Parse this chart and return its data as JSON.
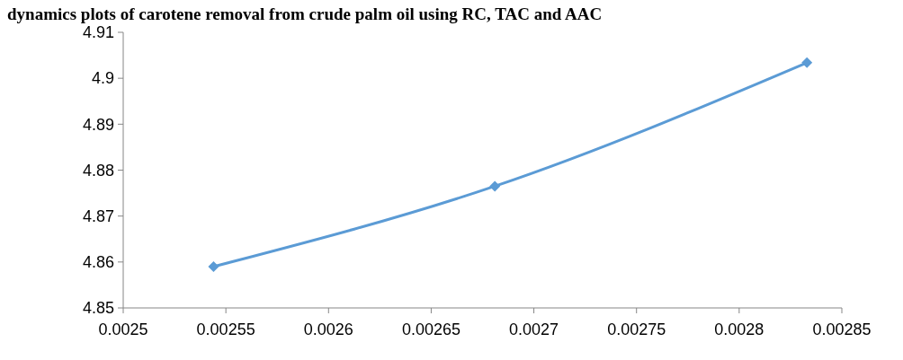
{
  "chart_data": {
    "type": "line",
    "title": "dynamics plots of carotene removal from crude palm oil using RC, TAC and AAC",
    "x": [
      0.002544,
      0.002681,
      0.002833
    ],
    "series": [
      {
        "color": "#5b9bd5",
        "values": [
          4.859,
          4.8765,
          4.9034
        ]
      }
    ],
    "xlim": [
      0.0025,
      0.00285
    ],
    "xticks": [
      0.0025,
      0.00255,
      0.0026,
      0.00265,
      0.0027,
      0.00275,
      0.0028,
      0.00285
    ],
    "ylim": [
      4.85,
      4.91
    ],
    "yticks": [
      4.85,
      4.86,
      4.87,
      4.88,
      4.89,
      4.9,
      4.91
    ],
    "grid": false,
    "marker": "diamond",
    "line_style": "solid"
  }
}
